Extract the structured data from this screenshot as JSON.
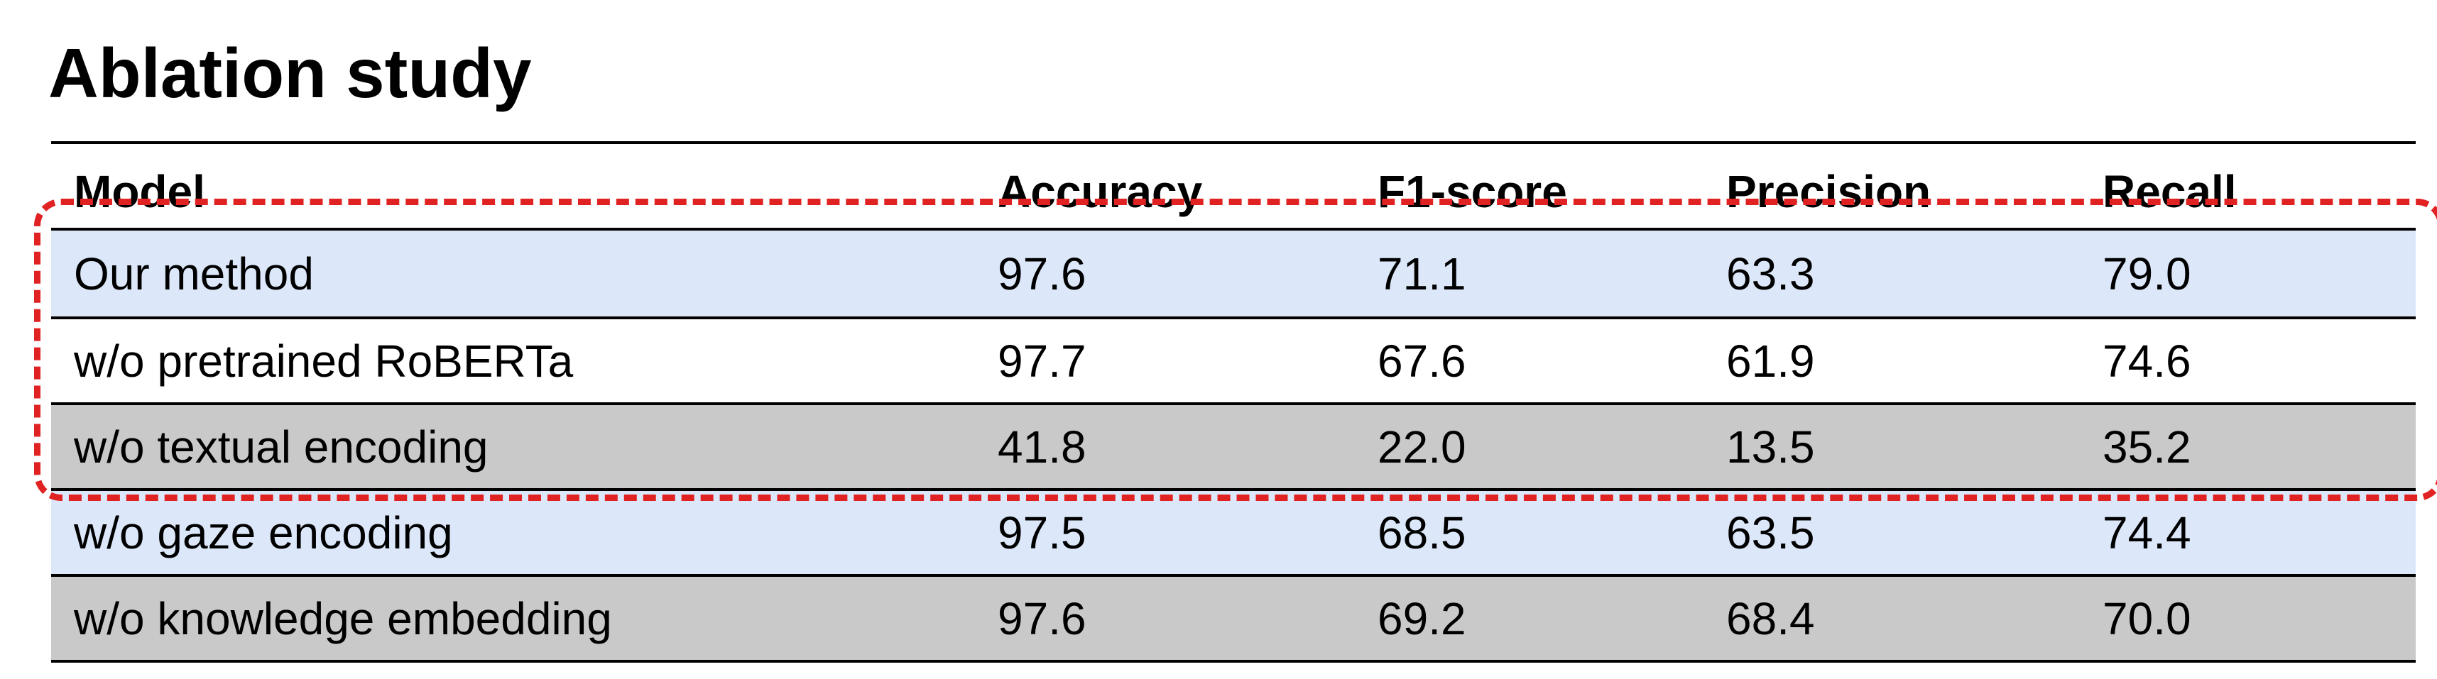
{
  "title": "Ablation study",
  "table": {
    "columns": [
      "Model",
      "Accuracy",
      "F1-score",
      "Precision",
      "Recall"
    ],
    "rows": [
      {
        "model": "Our method",
        "accuracy": "97.6",
        "f1": "71.1",
        "precision": "63.3",
        "recall": "79.0",
        "bg": "#dce8fa"
      },
      {
        "model": "w/o pretrained RoBERTa",
        "accuracy": "97.7",
        "f1": "67.6",
        "precision": "61.9",
        "recall": "74.6",
        "bg": "#ffffff"
      },
      {
        "model": "w/o textual encoding",
        "accuracy": "41.8",
        "f1": "22.0",
        "precision": "13.5",
        "recall": "35.2",
        "bg": "#c9c9c9"
      },
      {
        "model": "w/o gaze encoding",
        "accuracy": "97.5",
        "f1": "68.5",
        "precision": "63.5",
        "recall": "74.4",
        "bg": "#dce8fa"
      },
      {
        "model": "w/o knowledge embedding",
        "accuracy": "97.6",
        "f1": "69.2",
        "precision": "68.4",
        "recall": "70.0",
        "bg": "#c9c9c9"
      }
    ]
  },
  "highlight": {
    "color": "#e02222",
    "rows_highlighted": [
      0,
      1,
      2
    ]
  }
}
